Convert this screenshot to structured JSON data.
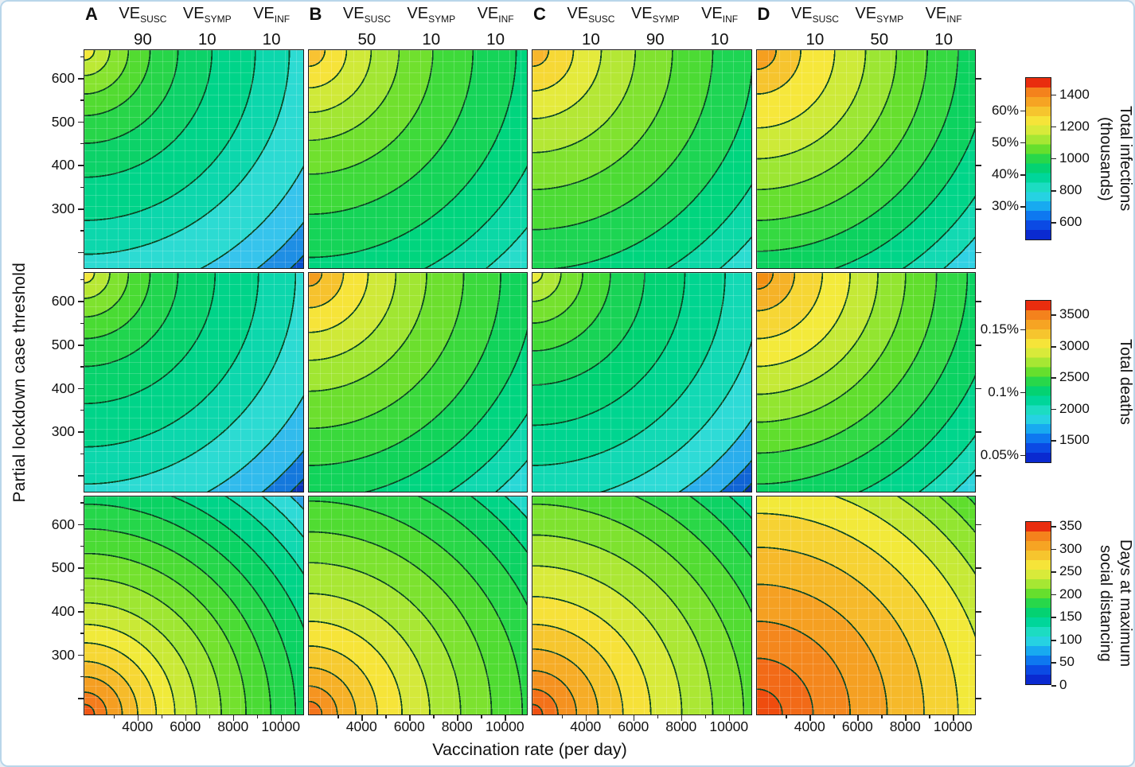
{
  "axes": {
    "x_label": "Vaccination rate (per day)",
    "y_label": "Partial lockdown case threshold",
    "x_tick_labels": [
      "4000",
      "6000",
      "8000",
      "10000"
    ],
    "y_tick_labels": [
      "600",
      "500",
      "400",
      "300"
    ]
  },
  "header": {
    "ve_base": "VE",
    "ve_subscripts": [
      "SUSC",
      "SYMP",
      "INF"
    ]
  },
  "colorbars": [
    {
      "title_lines": [
        "Total infections",
        "(thousands)"
      ],
      "value_ticks": [
        "1400",
        "1200",
        "1000",
        "800",
        "600"
      ],
      "percent_ticks": [
        "60%",
        "50%",
        "40%",
        "30%"
      ]
    },
    {
      "title_lines": [
        "Total deaths"
      ],
      "value_ticks": [
        "3500",
        "3000",
        "2500",
        "2000",
        "1500"
      ],
      "percent_ticks": [
        "0.15%",
        "0.1%",
        "0.05%"
      ]
    },
    {
      "title_lines": [
        "Days at maximum",
        "social distancing"
      ],
      "value_ticks": [
        "350",
        "300",
        "250",
        "200",
        "150",
        "100",
        "50",
        "0"
      ],
      "percent_ticks": []
    }
  ],
  "chart_data": {
    "type": "heatmap",
    "subtype": "filled-contour-grid",
    "x": {
      "label": "Vaccination rate (per day)",
      "range": [
        2000,
        11000
      ],
      "ticks": [
        4000,
        6000,
        8000,
        10000
      ]
    },
    "y": {
      "label": "Partial lockdown case threshold",
      "range": [
        150,
        660
      ],
      "ticks": [
        300,
        400,
        500,
        600
      ]
    },
    "colormap": [
      "#0a2ad0",
      "#0b4ae4",
      "#0e78f0",
      "#18aaf0",
      "#26d2e2",
      "#1cdcc2",
      "#00d69a",
      "#04d272",
      "#28d74a",
      "#66df2d",
      "#a6e733",
      "#d8ea3a",
      "#f6e439",
      "#f6c52e",
      "#f6a423",
      "#f4821c",
      "#e92d0e"
    ],
    "contour_line_color": "#0a4623",
    "columns": [
      {
        "letter": "A",
        "ve_susc": 90,
        "ve_symp": 10,
        "ve_inf": 10
      },
      {
        "letter": "B",
        "ve_susc": 50,
        "ve_symp": 10,
        "ve_inf": 10
      },
      {
        "letter": "C",
        "ve_susc": 10,
        "ve_symp": 90,
        "ve_inf": 10
      },
      {
        "letter": "D",
        "ve_susc": 10,
        "ve_symp": 50,
        "ve_inf": 10
      }
    ],
    "rows": [
      {
        "metric": "Total infections (thousands)",
        "colorbar_ticks": [
          600,
          800,
          1000,
          1200,
          1400
        ],
        "colorbar_percent_ticks": [
          "30%",
          "40%",
          "50%",
          "60%"
        ],
        "panels": [
          {
            "column": "A",
            "high_corner": "top-left",
            "high_value": 1050,
            "low_corner": "bottom-right",
            "low_value": 480,
            "anchor": "tl",
            "bands": [
              [
                "#f4e93a",
                3
              ],
              [
                "#bce934",
                8
              ],
              [
                "#86e32e",
                14
              ],
              [
                "#52db31",
                21
              ],
              [
                "#27d549",
                30
              ],
              [
                "#0cd268",
                41
              ],
              [
                "#00d489",
                55
              ],
              [
                "#0cd7ac",
                66
              ],
              [
                "#2cdbd2",
                80
              ],
              [
                "#36c4ec",
                90
              ],
              [
                "#1e8ee4",
                97
              ],
              [
                "#0a50cc",
                100
              ]
            ]
          },
          {
            "column": "B",
            "high_corner": "top-left",
            "high_value": 1250,
            "low_corner": "bottom",
            "low_value": 720,
            "anchor": "tl",
            "bands": [
              [
                "#f8c332",
                5
              ],
              [
                "#f6e33a",
                12
              ],
              [
                "#cfe938",
                20
              ],
              [
                "#a2e633",
                29
              ],
              [
                "#70e02e",
                40
              ],
              [
                "#3eda3a",
                53
              ],
              [
                "#15d458",
                67
              ],
              [
                "#00d57e",
                80
              ],
              [
                "#0bd8a6",
                91
              ],
              [
                "#27dcca",
                100
              ]
            ]
          },
          {
            "column": "C",
            "high_corner": "top-left",
            "high_value": 1300,
            "low_corner": "bottom",
            "low_value": 720,
            "anchor": "tl",
            "bands": [
              [
                "#f7b62c",
                5
              ],
              [
                "#f6d835",
                13
              ],
              [
                "#e4ea3c",
                22
              ],
              [
                "#b4e735",
                33
              ],
              [
                "#80e22f",
                45
              ],
              [
                "#4cdb34",
                58
              ],
              [
                "#1dd553",
                71
              ],
              [
                "#00d57e",
                83
              ],
              [
                "#0bd8a6",
                93
              ],
              [
                "#2adcd0",
                100
              ]
            ]
          },
          {
            "column": "D",
            "high_corner": "top-left",
            "high_value": 1350,
            "low_corner": "bottom",
            "low_value": 620,
            "anchor": "tl",
            "bands": [
              [
                "#f59f1f",
                6
              ],
              [
                "#f6c42e",
                14
              ],
              [
                "#f6e73b",
                25
              ],
              [
                "#cdea38",
                35
              ],
              [
                "#9ce633",
                45
              ],
              [
                "#66df2e",
                55
              ],
              [
                "#35d941",
                65
              ],
              [
                "#0cd25f",
                75
              ],
              [
                "#00d589",
                85
              ],
              [
                "#12d9b2",
                93
              ],
              [
                "#31d2e4",
                100
              ]
            ]
          }
        ]
      },
      {
        "metric": "Total deaths",
        "colorbar_ticks": [
          1500,
          2000,
          2500,
          3000,
          3500
        ],
        "colorbar_percent_ticks": [
          "0.05%",
          "0.1%",
          "0.15%"
        ],
        "panels": [
          {
            "column": "A",
            "high_corner": "top-left",
            "high_value": 2600,
            "low_corner": "bottom",
            "low_value": 1250,
            "anchor": "tl",
            "bands": [
              [
                "#f2e83c",
                3
              ],
              [
                "#b7e833",
                8
              ],
              [
                "#7ee22e",
                14
              ],
              [
                "#49db33",
                21
              ],
              [
                "#20d54e",
                30
              ],
              [
                "#07d26c",
                42
              ],
              [
                "#00d489",
                56
              ],
              [
                "#0cd7ac",
                68
              ],
              [
                "#2cdbd2",
                81
              ],
              [
                "#31bbec",
                91
              ],
              [
                "#1478dc",
                97
              ],
              [
                "#0a34b8",
                100
              ]
            ]
          },
          {
            "column": "B",
            "high_corner": "top-left",
            "high_value": 3350,
            "low_corner": "bottom",
            "low_value": 1800,
            "anchor": "tl",
            "bands": [
              [
                "#f49d1e",
                4
              ],
              [
                "#f6c22d",
                11
              ],
              [
                "#f6e439",
                19
              ],
              [
                "#cfe938",
                28
              ],
              [
                "#a0e632",
                38
              ],
              [
                "#6cdf2e",
                50
              ],
              [
                "#3ad93c",
                62
              ],
              [
                "#11d35a",
                73
              ],
              [
                "#00d580",
                84
              ],
              [
                "#0ed8ae",
                93
              ],
              [
                "#28d8d6",
                100
              ]
            ]
          },
          {
            "column": "C",
            "high_corner": "top-left",
            "high_value": 2550,
            "low_corner": "bottom",
            "low_value": 1150,
            "anchor": "tl",
            "bands": [
              [
                "#e8ea3c",
                3
              ],
              [
                "#aee734",
                9
              ],
              [
                "#74e12e",
                16
              ],
              [
                "#42da36",
                25
              ],
              [
                "#18d356",
                36
              ],
              [
                "#00d273",
                49
              ],
              [
                "#00d590",
                62
              ],
              [
                "#12d9b4",
                74
              ],
              [
                "#2edbd6",
                85
              ],
              [
                "#2aaeec",
                93
              ],
              [
                "#0f64d4",
                98
              ],
              [
                "#0830a8",
                100
              ]
            ]
          },
          {
            "column": "D",
            "high_corner": "top-left",
            "high_value": 3400,
            "low_corner": "bottom",
            "low_value": 1500,
            "anchor": "tl",
            "bands": [
              [
                "#f28f12",
                5
              ],
              [
                "#f5b227",
                12
              ],
              [
                "#f6d634",
                21
              ],
              [
                "#f3ea3b",
                30
              ],
              [
                "#c4e936",
                39
              ],
              [
                "#92e530",
                48
              ],
              [
                "#60de2d",
                58
              ],
              [
                "#30d845",
                68
              ],
              [
                "#0bd262",
                78
              ],
              [
                "#00d58c",
                88
              ],
              [
                "#16dab6",
                95
              ],
              [
                "#2ed4dc",
                100
              ]
            ]
          }
        ]
      },
      {
        "metric": "Days at maximum social distancing",
        "colorbar_ticks": [
          0,
          50,
          100,
          150,
          200,
          250,
          300,
          350
        ],
        "colorbar_percent_ticks": [],
        "panels": [
          {
            "column": "A",
            "high_corner": "bottom-left",
            "high_value": 330,
            "low_corner": "top-right",
            "low_value": 60,
            "anchor": "bl",
            "bands": [
              [
                "#f15714",
                3
              ],
              [
                "#f47c1c",
                7
              ],
              [
                "#f59e21",
                12
              ],
              [
                "#f6bb2a",
                17
              ],
              [
                "#f6d734",
                23
              ],
              [
                "#f0ea3a",
                29
              ],
              [
                "#c9e936",
                36
              ],
              [
                "#9ee632",
                44
              ],
              [
                "#73e12e",
                52
              ],
              [
                "#4adb34",
                60
              ],
              [
                "#25d64a",
                68
              ],
              [
                "#0ad263",
                76
              ],
              [
                "#00d488",
                84
              ],
              [
                "#10d8b0",
                91
              ],
              [
                "#2edad6",
                97
              ],
              [
                "#2ba4e8",
                100
              ]
            ]
          },
          {
            "column": "B",
            "high_corner": "bottom-left",
            "high_value": 300,
            "low_corner": "top-right",
            "low_value": 90,
            "anchor": "bl",
            "bands": [
              [
                "#f4741b",
                4
              ],
              [
                "#f59420",
                9
              ],
              [
                "#f6b026",
                15
              ],
              [
                "#f6ca30",
                22
              ],
              [
                "#f6e439",
                30
              ],
              [
                "#d4e93b",
                39
              ],
              [
                "#a8e734",
                49
              ],
              [
                "#7ce22f",
                59
              ],
              [
                "#50dc32",
                69
              ],
              [
                "#28d748",
                79
              ],
              [
                "#0cd263",
                88
              ],
              [
                "#00d586",
                95
              ],
              [
                "#20d9ca",
                100
              ]
            ]
          },
          {
            "column": "C",
            "high_corner": "bottom-left",
            "high_value": 340,
            "low_corner": "top-right",
            "low_value": 110,
            "anchor": "bl",
            "bands": [
              [
                "#ef5011",
                3
              ],
              [
                "#f37119",
                8
              ],
              [
                "#f5911f",
                14
              ],
              [
                "#f6ac26",
                21
              ],
              [
                "#f6c62e",
                29
              ],
              [
                "#f6e139",
                38
              ],
              [
                "#d8ea3a",
                48
              ],
              [
                "#abe734",
                58
              ],
              [
                "#7ee22f",
                68
              ],
              [
                "#52dc32",
                78
              ],
              [
                "#2ad747",
                87
              ],
              [
                "#0dd264",
                95
              ],
              [
                "#00d586",
                100
              ]
            ]
          },
          {
            "column": "D",
            "high_corner": "bottom-left",
            "high_value": 355,
            "low_corner": "top-right",
            "low_value": 140,
            "anchor": "bl",
            "bands": [
              [
                "#ef4c0e",
                8
              ],
              [
                "#f26a17",
                18
              ],
              [
                "#f4871d",
                30
              ],
              [
                "#f5a022",
                42
              ],
              [
                "#f6b92a",
                54
              ],
              [
                "#f6d233",
                65
              ],
              [
                "#f2e93a",
                75
              ],
              [
                "#c6e936",
                84
              ],
              [
                "#92e530",
                92
              ],
              [
                "#5fde2d",
                98
              ],
              [
                "#2ed74a",
                100
              ]
            ]
          }
        ]
      }
    ]
  }
}
